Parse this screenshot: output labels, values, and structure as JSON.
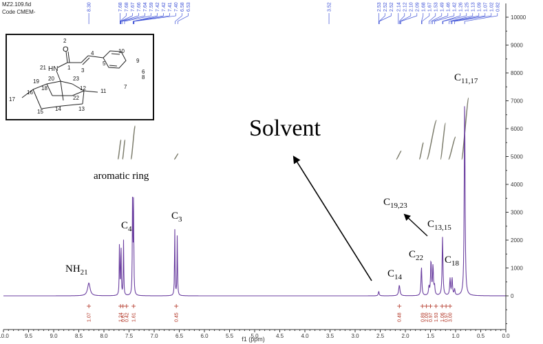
{
  "header": {
    "file": "MZ2.109.fid",
    "code": "Code CMEM-"
  },
  "colors": {
    "spectrum": "#6b3fa0",
    "peak_labels": "#3b4fd6",
    "integral_labels": "#b03020",
    "integral_curves": "#7e7e6e",
    "axis": "#333333"
  },
  "molecule": {
    "atoms": [
      "2",
      "O",
      "21",
      "HN",
      "1",
      "4",
      "3",
      "5",
      "10",
      "9",
      "8",
      "7",
      "6",
      "19",
      "20",
      "23",
      "18",
      "16",
      "17",
      "12",
      "11",
      "15",
      "14",
      "22",
      "13"
    ]
  },
  "annotations": {
    "solvent": "Solvent",
    "aromatic": "aromatic ring",
    "nh": "NH",
    "nh_sub": "21",
    "c4": "C",
    "c4_sub": "4",
    "c3": "C",
    "c3_sub": "3",
    "c14": "C",
    "c14_sub": "14",
    "c22": "C",
    "c22_sub": "22",
    "c18": "C",
    "c18_sub": "18",
    "c1315": "C",
    "c1315_sub": "13,15",
    "c1923": "C",
    "c1923_sub": "19,23",
    "c1117": "C",
    "c1117_sub": "11,17"
  },
  "chart_data": {
    "type": "line",
    "title": "",
    "xlabel": "f1 (ppm)",
    "ylabel": "",
    "xlim": [
      10.0,
      0.0
    ],
    "ylim": [
      -1000,
      10300
    ],
    "x_ticks": [
      "10.0",
      "9.5",
      "9.0",
      "8.5",
      "8.0",
      "7.5",
      "7.0",
      "6.5",
      "6.0",
      "5.5",
      "5.0",
      "4.5",
      "4.0",
      "3.5",
      "3.0",
      "2.5",
      "2.0",
      "1.5",
      "1.0",
      "0.5",
      "0.0"
    ],
    "y_ticks": [
      "0",
      "1000",
      "2000",
      "3000",
      "4000",
      "5000",
      "6000",
      "7000",
      "8000",
      "9000",
      "10000"
    ],
    "peak_labels": [
      "8.30",
      "7.68",
      "7.68",
      "7.67",
      "7.66",
      "7.64",
      "7.59",
      "7.42",
      "7.42",
      "7.41",
      "7.40",
      "6.58",
      "6.53",
      "3.52",
      "2.53",
      "2.52",
      "2.52",
      "2.14",
      "2.12",
      "2.10",
      "2.09",
      "1.68",
      "1.67",
      "1.53",
      "1.49",
      "1.46",
      "1.42",
      "1.26",
      "1.25",
      "1.13",
      "1.09",
      "1.07",
      "1.02",
      "0.82"
    ],
    "peaks": [
      {
        "ppm": 8.3,
        "height": 460,
        "width": 0.03
      },
      {
        "ppm": 7.69,
        "height": 1930,
        "width": 0.006
      },
      {
        "ppm": 7.66,
        "height": 1900,
        "width": 0.006
      },
      {
        "ppm": 7.61,
        "height": 1980,
        "width": 0.006
      },
      {
        "ppm": 7.43,
        "height": 3520,
        "width": 0.006
      },
      {
        "ppm": 7.41,
        "height": 3300,
        "width": 0.006
      },
      {
        "ppm": 6.59,
        "height": 2420,
        "width": 0.006
      },
      {
        "ppm": 6.54,
        "height": 2200,
        "width": 0.006
      },
      {
        "ppm": 2.53,
        "height": 160,
        "width": 0.01
      },
      {
        "ppm": 2.12,
        "height": 380,
        "width": 0.015
      },
      {
        "ppm": 1.68,
        "height": 1040,
        "width": 0.01
      },
      {
        "ppm": 1.53,
        "height": 300,
        "width": 0.01
      },
      {
        "ppm": 1.49,
        "height": 1250,
        "width": 0.01
      },
      {
        "ppm": 1.45,
        "height": 1050,
        "width": 0.01
      },
      {
        "ppm": 1.42,
        "height": 320,
        "width": 0.01
      },
      {
        "ppm": 1.26,
        "height": 2100,
        "width": 0.01
      },
      {
        "ppm": 1.11,
        "height": 600,
        "width": 0.01
      },
      {
        "ppm": 1.07,
        "height": 620,
        "width": 0.01
      },
      {
        "ppm": 1.02,
        "height": 220,
        "width": 0.01
      },
      {
        "ppm": 0.82,
        "height": 7050,
        "width": 0.01
      }
    ],
    "integrals": [
      {
        "ppm": 8.3,
        "value": "1.07"
      },
      {
        "ppm": 7.67,
        "value": "1.24"
      },
      {
        "ppm": 7.62,
        "value": "0.67"
      },
      {
        "ppm": 7.55,
        "value": "0.42"
      },
      {
        "ppm": 7.41,
        "value": "1.61"
      },
      {
        "ppm": 6.56,
        "value": "0.45"
      },
      {
        "ppm": 2.12,
        "value": "0.48"
      },
      {
        "ppm": 1.66,
        "value": "0.89"
      },
      {
        "ppm": 1.58,
        "value": "2.00"
      },
      {
        "ppm": 1.5,
        "value": "0.97"
      },
      {
        "ppm": 1.39,
        "value": "1.93"
      },
      {
        "ppm": 1.27,
        "value": "1.06"
      },
      {
        "ppm": 1.19,
        "value": "0.97"
      },
      {
        "ppm": 1.11,
        "value": "3.00"
      }
    ],
    "integral_curves": [
      {
        "ppm_start": 7.72,
        "ppm_end": 7.66,
        "from": 4900,
        "to": 5600
      },
      {
        "ppm_start": 7.63,
        "ppm_end": 7.58,
        "from": 4900,
        "to": 5600
      },
      {
        "ppm_start": 7.46,
        "ppm_end": 7.38,
        "from": 4900,
        "to": 6100
      },
      {
        "ppm_start": 6.6,
        "ppm_end": 6.52,
        "from": 4900,
        "to": 5100
      },
      {
        "ppm_start": 2.18,
        "ppm_end": 2.08,
        "from": 4900,
        "to": 5200
      },
      {
        "ppm_start": 1.72,
        "ppm_end": 1.64,
        "from": 4900,
        "to": 5500
      },
      {
        "ppm_start": 1.57,
        "ppm_end": 1.38,
        "from": 4900,
        "to": 6300
      },
      {
        "ppm_start": 1.3,
        "ppm_end": 1.2,
        "from": 4900,
        "to": 6200
      },
      {
        "ppm_start": 1.14,
        "ppm_end": 1.0,
        "from": 4900,
        "to": 5700
      },
      {
        "ppm_start": 0.88,
        "ppm_end": 0.74,
        "from": 4900,
        "to": 7100
      }
    ]
  }
}
